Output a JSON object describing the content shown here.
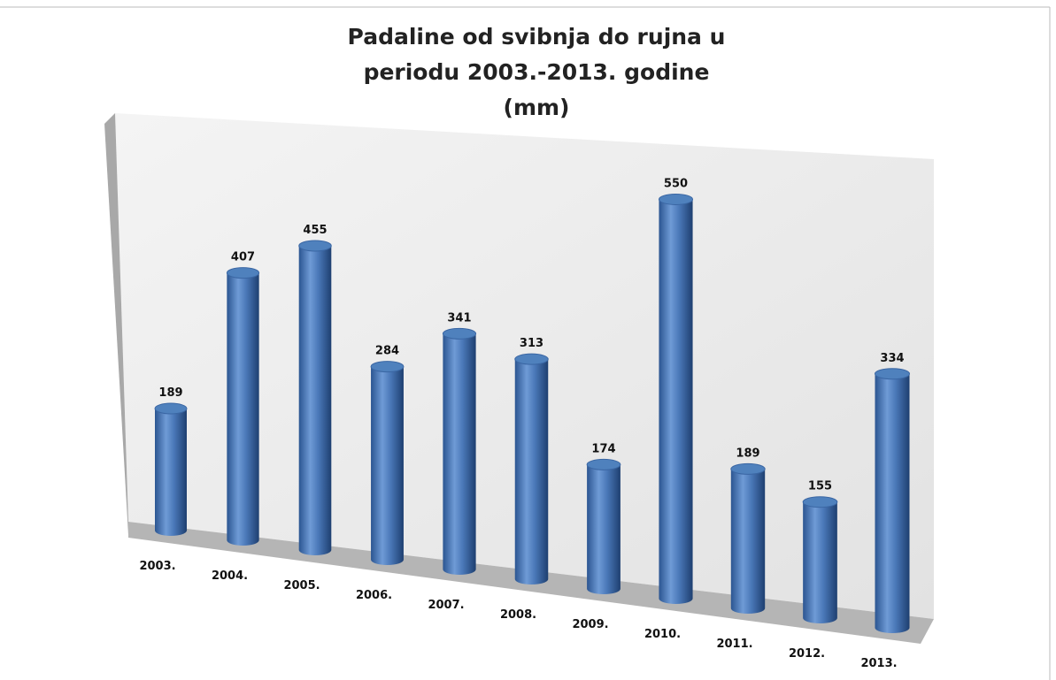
{
  "chart_data": {
    "type": "bar3d",
    "title": "Padaline od svibnja do rujna u periodu 2003.-2013. godine (mm)",
    "categories": [
      "2003.",
      "2004.",
      "2005.",
      "2006.",
      "2007.",
      "2008.",
      "2009.",
      "2010.",
      "2011.",
      "2012.",
      "2013."
    ],
    "values": [
      189,
      407,
      455,
      284,
      341,
      313,
      174,
      550,
      189,
      155,
      334
    ],
    "color": "#4f81bd"
  }
}
